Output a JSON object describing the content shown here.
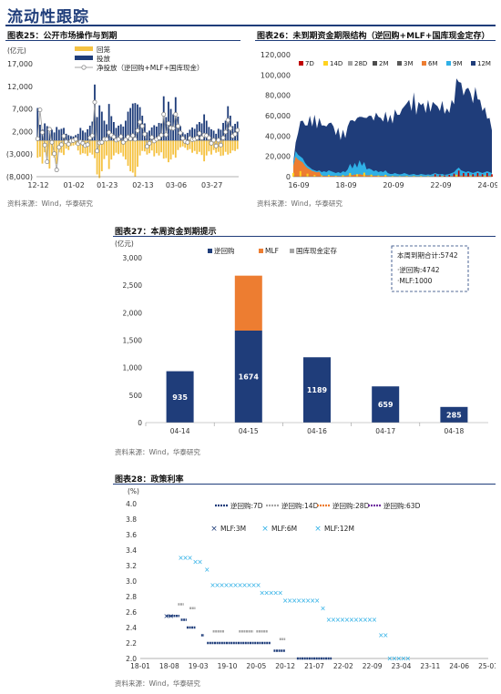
{
  "page_title": "流动性跟踪",
  "source_text": "资料来源：Wind，华泰研究",
  "colors": {
    "navy": "#1f3d7a",
    "orange": "#ed7d31",
    "gray": "#a5a5a5",
    "gold": "#f5c242",
    "lightblue": "#2fb0e6",
    "yellow": "#ffd21f",
    "red": "#c00000"
  },
  "chart_data": [
    {
      "id": "fig25",
      "type": "bar",
      "title": "图表25：公开市场操作与到期",
      "ylabel": "(亿元)",
      "ylim": [
        -8000,
        17000
      ],
      "yticks": [
        -8000,
        -3000,
        2000,
        7000,
        12000,
        17000
      ],
      "ytick_labels": [
        "(8,000)",
        "(3,000)",
        "2,000",
        "7,000",
        "12,000",
        "17,000"
      ],
      "xtick_labels": [
        "12-12",
        "01-02",
        "01-23",
        "02-13",
        "03-06",
        "03-27"
      ],
      "legend": [
        {
          "name": "回笼",
          "color": "#f5c242"
        },
        {
          "name": "投放",
          "color": "#1f3d7a"
        },
        {
          "name": "净投放（逆回购+MLF+国库现金）",
          "color": "#a5a5a5"
        }
      ],
      "series": [
        {
          "name": "投放",
          "values": [
            7200,
            3500,
            2500,
            3800,
            3200,
            1800,
            2400,
            1800,
            3000,
            2400,
            2600,
            2800,
            1500,
            1200,
            1000,
            900,
            1200,
            1500,
            2800,
            2200,
            1800,
            2500,
            3300,
            4200,
            12400,
            5200,
            7800,
            6400,
            4400,
            3600,
            8100,
            5400,
            4100,
            2800,
            3300,
            3600,
            3100,
            4400,
            6400,
            7200,
            8200,
            8300,
            8000,
            7400,
            5500,
            3800,
            1800,
            2200,
            2900,
            3400,
            3100,
            3900,
            3800,
            9800,
            5200,
            8600,
            7000,
            5800,
            9600,
            5300,
            3200,
            1800,
            1400,
            1700,
            2400,
            2900,
            2600,
            3600,
            4100,
            3800,
            5800,
            4400,
            3000,
            2500,
            2200,
            1500,
            2600,
            2400,
            3900,
            4400,
            7600,
            5500,
            3200,
            3700,
            4200
          ]
        },
        {
          "name": "回笼",
          "values": [
            -3800,
            -3600,
            -5100,
            -2600,
            -3600,
            -6200,
            -3300,
            -3800,
            -5200,
            -2600,
            -2700,
            -3200,
            -1800,
            -2100,
            -1200,
            -1100,
            -900,
            -2200,
            -3100,
            -2800,
            -2900,
            -3400,
            -2700,
            -3100,
            -3900,
            -7500,
            -8300,
            -6800,
            -4100,
            -3300,
            -6300,
            -4200,
            -3300,
            -2700,
            -3000,
            -2700,
            -3500,
            -4200,
            -5600,
            -6800,
            -7100,
            -8000,
            -5800,
            -3300,
            -2300,
            -2400,
            -3100,
            -2800,
            -2200,
            -3500,
            -2800,
            -3300,
            -2600,
            -4000,
            -3900,
            -4800,
            -4200,
            -3100,
            -3800,
            -2100,
            -1500,
            -1300,
            -1600,
            -2100,
            -1900,
            -2700,
            -2300,
            -3000,
            -2500,
            -3200,
            -4600,
            -3300,
            -2400,
            -3100,
            -2100,
            -2700,
            -2500,
            -3400,
            -3300,
            -2500,
            -3100,
            -2800,
            -2200,
            -2300,
            -1900
          ]
        },
        {
          "name": "净投放（逆回购+MLF+国库现金）",
          "values": [
            400,
            6800,
            1800,
            -1000,
            -4700,
            2500,
            -400,
            -2900,
            -6500,
            -1500,
            -900,
            1000,
            -300,
            -800,
            -100,
            0,
            300,
            -700,
            -300,
            -600,
            -1100,
            -900,
            600,
            1100,
            8500,
            -2300,
            -500,
            -400,
            300,
            300,
            1800,
            1200,
            800,
            100,
            300,
            900,
            -400,
            200,
            800,
            400,
            1100,
            300,
            2200,
            4100,
            3200,
            1400,
            -1300,
            -600,
            700,
            -100,
            300,
            600,
            1200,
            5800,
            1300,
            3800,
            2800,
            2700,
            5800,
            3200,
            1700,
            500,
            -200,
            -400,
            500,
            200,
            300,
            600,
            1600,
            600,
            1200,
            1100,
            600,
            -600,
            100,
            -1200,
            100,
            -1000,
            600,
            1900,
            4500,
            2700,
            1000,
            1400,
            2300
          ]
        }
      ]
    },
    {
      "id": "fig26",
      "type": "area",
      "title": "图表26：未到期资金期限结构（逆回购+MLF+国库现金定存）",
      "ylim": [
        0,
        120000
      ],
      "yticks": [
        0,
        20000,
        40000,
        60000,
        80000,
        100000,
        120000
      ],
      "ytick_labels": [
        "0",
        "20,000",
        "40,000",
        "60,000",
        "80,000",
        "100,000",
        "120,000"
      ],
      "xtick_labels": [
        "16-09",
        "18-09",
        "20-09",
        "22-09",
        "24-09"
      ],
      "legend": [
        {
          "name": "7D",
          "color": "#c00000"
        },
        {
          "name": "14D",
          "color": "#ffd21f"
        },
        {
          "name": "28D",
          "color": "#a5a5a5"
        },
        {
          "name": "2M",
          "color": "#4d4d4d"
        },
        {
          "name": "3M",
          "color": "#595959"
        },
        {
          "name": "6M",
          "color": "#ed7d31"
        },
        {
          "name": "9M",
          "color": "#2fb0e6"
        },
        {
          "name": "12M",
          "color": "#1f3d7a"
        }
      ],
      "series": [
        {
          "name": "total",
          "values": [
            15000,
            32000,
            45000,
            52000,
            58000,
            48000,
            53000,
            57000,
            52000,
            58000,
            50000,
            55000,
            53000,
            48000,
            52000,
            50000,
            56000,
            47000,
            43000,
            46000,
            38000,
            44000,
            40000,
            47000,
            58000,
            53000,
            57000,
            55000,
            62000,
            56000,
            61000,
            55000,
            63000,
            57000,
            58000,
            60000,
            62000,
            55000,
            57000,
            61000,
            56000,
            58000,
            55000,
            63000,
            64000,
            58000,
            70000,
            66000,
            76000,
            72000,
            68000,
            79000,
            64000,
            70000,
            74000,
            69000,
            66000,
            72000,
            67000,
            70000,
            75000,
            66000,
            68000,
            71000,
            65000,
            64000,
            66000,
            72000,
            75000,
            92000,
            98000,
            88000,
            84000,
            82000,
            92000,
            78000,
            76000,
            84000,
            80000,
            72000,
            68000,
            65000,
            60000,
            55000,
            48000
          ]
        },
        {
          "name": "short (7D/14D/28D/6M/9M share)",
          "values": [
            15000,
            28000,
            24000,
            22000,
            20000,
            15000,
            12000,
            10000,
            8000,
            7000,
            6000,
            7000,
            5000,
            6000,
            5000,
            7000,
            6000,
            5000,
            4000,
            5000,
            4000,
            6000,
            5000,
            8000,
            14000,
            9000,
            15000,
            10000,
            18000,
            12000,
            16000,
            8000,
            9000,
            8000,
            6000,
            7000,
            5000,
            6000,
            5000,
            7000,
            4000,
            3000,
            3000,
            4000,
            3000,
            2500,
            3000,
            4000,
            3000,
            2000,
            2500,
            3000,
            2000,
            2000,
            3000,
            2500,
            2000,
            2500,
            2000,
            3000,
            4000,
            3000,
            2500,
            3000,
            2000,
            2500,
            3000,
            4000,
            5000,
            8000,
            10000,
            7000,
            6000,
            5000,
            6000,
            5000,
            4000,
            5000,
            6000,
            5000,
            4000,
            5000,
            6000,
            5000,
            4000
          ]
        }
      ]
    },
    {
      "id": "fig27",
      "type": "bar",
      "title": "图表27：本周资金到期提示",
      "ylabel": "(亿元)",
      "ylim": [
        0,
        3000
      ],
      "yticks": [
        0,
        500,
        1000,
        1500,
        2000,
        2500,
        3000
      ],
      "ytick_labels": [
        "0",
        "500",
        "1,000",
        "1,500",
        "2,000",
        "2,500",
        "3,000"
      ],
      "categories": [
        "04-14",
        "04-15",
        "04-16",
        "04-17",
        "04-18"
      ],
      "legend": [
        {
          "name": "逆回购",
          "color": "#1f3d7a"
        },
        {
          "name": "MLF",
          "color": "#ed7d31"
        },
        {
          "name": "国库现金定存",
          "color": "#a5a5a5"
        }
      ],
      "series": [
        {
          "name": "逆回购",
          "values": [
            935,
            1674,
            1189,
            659,
            285
          ]
        },
        {
          "name": "MLF",
          "values": [
            0,
            1000,
            0,
            0,
            0
          ]
        },
        {
          "name": "国库现金定存",
          "values": [
            0,
            0,
            0,
            0,
            0
          ]
        }
      ],
      "data_labels": [
        "935",
        "1674",
        "1189",
        "659",
        "285"
      ],
      "note": {
        "line1": "本周到期合计:5742",
        "line2": "·逆回购:4742",
        "line3": "·MLF:1000"
      }
    },
    {
      "id": "fig28",
      "type": "scatter",
      "title": "图表28：政策利率",
      "ylabel": "(%)",
      "ylim": [
        2.0,
        4.0
      ],
      "yticks": [
        2.0,
        2.2,
        2.4,
        2.6,
        2.8,
        3.0,
        3.2,
        3.4,
        3.6,
        3.8,
        4.0
      ],
      "ytick_labels": [
        "2.0",
        "2.2",
        "2.4",
        "2.6",
        "2.8",
        "3.0",
        "3.2",
        "3.4",
        "3.6",
        "3.8",
        "4.0"
      ],
      "xtick_labels": [
        "18-01",
        "18-08",
        "19-03",
        "19-10",
        "20-05",
        "20-12",
        "21-07",
        "22-02",
        "22-09",
        "23-04",
        "23-11",
        "24-06",
        "25-01"
      ],
      "legend": [
        {
          "name": "逆回购:7D",
          "color": "#1f3d7a"
        },
        {
          "name": "逆回购:14D",
          "color": "#a5a5a5"
        },
        {
          "name": "逆回购:28D",
          "color": "#ed7d31"
        },
        {
          "name": "逆回购:63D",
          "color": "#7030a0"
        },
        {
          "name": "MLF:3M",
          "color": "#1f3d7a"
        },
        {
          "name": "MLF:6M",
          "color": "#2fb0e6"
        },
        {
          "name": "MLF:12M",
          "color": "#2fb0e6"
        }
      ],
      "series": [
        {
          "name": "逆回购:7D",
          "segments": [
            [
              18.9,
              19.35,
              2.55
            ],
            [
              19.4,
              19.6,
              2.5
            ],
            [
              19.6,
              19.9,
              2.4
            ],
            [
              20.1,
              20.2,
              2.3
            ],
            [
              20.3,
              22.5,
              2.2
            ],
            [
              22.6,
              23.0,
              2.1
            ],
            [
              23.4,
              24.6,
              2.0
            ]
          ]
        },
        {
          "name": "逆回购:14D",
          "segments": [
            [
              19.3,
              19.5,
              2.7
            ],
            [
              19.7,
              19.9,
              2.65
            ],
            [
              20.5,
              20.9,
              2.35
            ],
            [
              21.4,
              21.9,
              2.35
            ],
            [
              22.0,
              22.4,
              2.35
            ],
            [
              22.8,
              23.0,
              2.25
            ]
          ]
        },
        {
          "name": "MLF:3M",
          "segments": [
            [
              18.9,
              19.2,
              2.55
            ]
          ]
        },
        {
          "name": "MLF:12M",
          "segments": [
            [
              19.4,
              19.8,
              3.3
            ],
            [
              19.9,
              20.2,
              3.25
            ],
            [
              20.3,
              20.45,
              3.15
            ],
            [
              20.5,
              22.1,
              2.95
            ],
            [
              22.2,
              22.9,
              2.85
            ],
            [
              23.0,
              24.2,
              2.75
            ],
            [
              24.3,
              24.4,
              2.65
            ],
            [
              24.5,
              26.2,
              2.5
            ],
            [
              26.3,
              26.5,
              2.3
            ],
            [
              26.6,
              27.3,
              2.0
            ]
          ]
        }
      ]
    }
  ]
}
